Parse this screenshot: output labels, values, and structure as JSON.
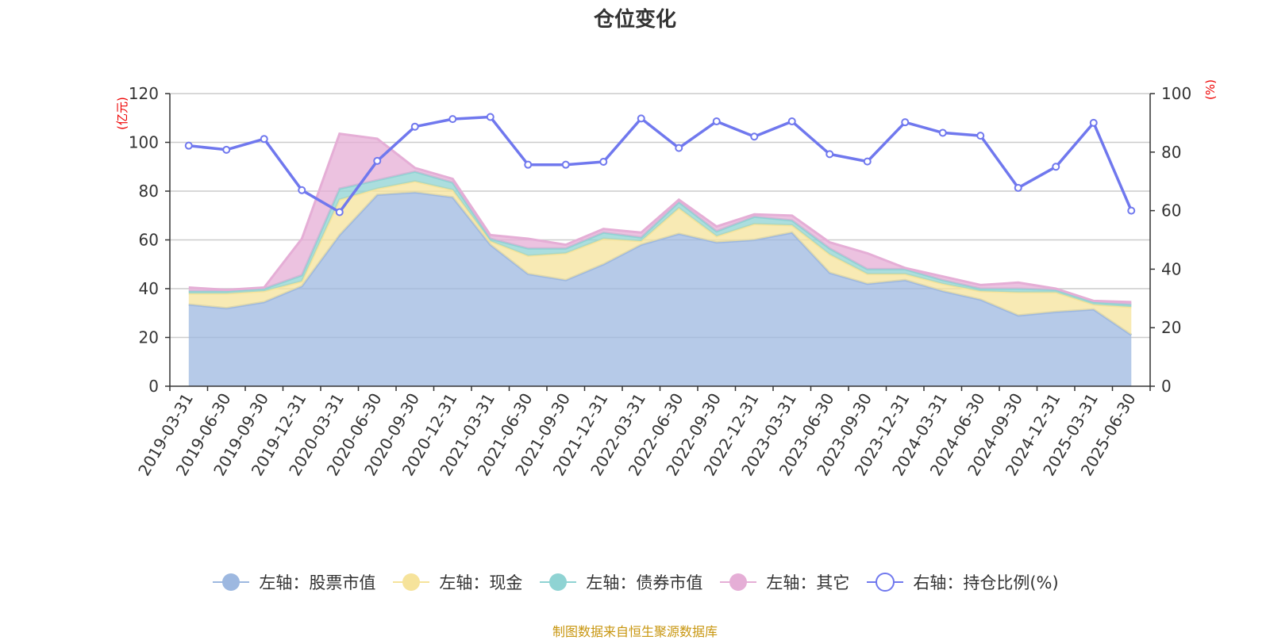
{
  "title": "仓位变化",
  "source_note": "制图数据来自恒生聚源数据库",
  "colors": {
    "stock": "#9db8e0",
    "cash": "#f6e39b",
    "bond": "#8fd3d3",
    "other": "#e5aed6",
    "ratio": "#7078ee",
    "grid": "#cccccc",
    "axis": "#333333",
    "unit": "#ee0000"
  },
  "chart_data": {
    "type": "area",
    "title": "仓位变化",
    "left_axis": {
      "unit": "(亿元)",
      "ylim": [
        0,
        120
      ],
      "ticks": [
        0,
        20,
        40,
        60,
        80,
        100,
        120
      ]
    },
    "right_axis": {
      "unit": "(%)",
      "ylim": [
        0,
        100
      ],
      "ticks": [
        0,
        20,
        40,
        60,
        80,
        100
      ]
    },
    "grid": true,
    "legend_position": "bottom",
    "categories": [
      "2019-03-31",
      "2019-06-30",
      "2019-09-30",
      "2019-12-31",
      "2020-03-31",
      "2020-06-30",
      "2020-09-30",
      "2020-12-31",
      "2021-03-31",
      "2021-06-30",
      "2021-09-30",
      "2021-12-31",
      "2022-03-31",
      "2022-06-30",
      "2022-09-30",
      "2022-12-31",
      "2023-03-31",
      "2023-06-30",
      "2023-09-30",
      "2023-12-31",
      "2024-03-31",
      "2024-06-30",
      "2024-09-30",
      "2024-12-31",
      "2025-03-31",
      "2025-06-30"
    ],
    "stacked_series": [
      {
        "key": "stock",
        "name": "左轴：股票市值",
        "axis": "left",
        "values": [
          33.5,
          32,
          34.5,
          41,
          62,
          78.5,
          79.5,
          77.5,
          58,
          46,
          43.5,
          50,
          58,
          62.5,
          59,
          60,
          63,
          46.5,
          42,
          43.5,
          39,
          35.5,
          29,
          30.5,
          31.5,
          21
        ]
      },
      {
        "key": "cash",
        "name": "左轴：现金",
        "axis": "left",
        "values": [
          4.5,
          6,
          4.5,
          2,
          14.5,
          2.5,
          4.5,
          3,
          1.5,
          7.5,
          11,
          10.5,
          1.5,
          10.5,
          2.5,
          6.5,
          3,
          7.5,
          4,
          2.5,
          3,
          3.5,
          9.5,
          8,
          2,
          11.5
        ]
      },
      {
        "key": "bond",
        "name": "左轴：债券市值",
        "axis": "left",
        "values": [
          1,
          1,
          1,
          2.5,
          4.5,
          3.5,
          4,
          3,
          1,
          3,
          2,
          2.5,
          1.5,
          2.5,
          2,
          3,
          2,
          2.5,
          2,
          2,
          1.5,
          1,
          1.5,
          1,
          1,
          1
        ]
      },
      {
        "key": "other",
        "name": "左轴：其它",
        "axis": "left",
        "values": [
          1.5,
          0.5,
          0.5,
          15,
          22.5,
          17,
          1.5,
          1.5,
          1.5,
          4,
          1.5,
          1.5,
          2,
          1,
          2,
          1,
          2,
          2.5,
          6.5,
          0.5,
          1.5,
          1.5,
          2.5,
          0.5,
          0.5,
          1
        ]
      }
    ],
    "line_series": {
      "key": "ratio",
      "name": "右轴：持仓比例(%)",
      "axis": "right",
      "values": [
        82.2,
        80.8,
        84.5,
        67,
        59.5,
        77,
        88.7,
        91.3,
        92,
        75.7,
        75.7,
        76.7,
        91.5,
        81.4,
        90.5,
        85.3,
        90.5,
        79.3,
        76.8,
        90.2,
        86.6,
        85.6,
        67.8,
        75,
        90,
        60
      ]
    }
  }
}
